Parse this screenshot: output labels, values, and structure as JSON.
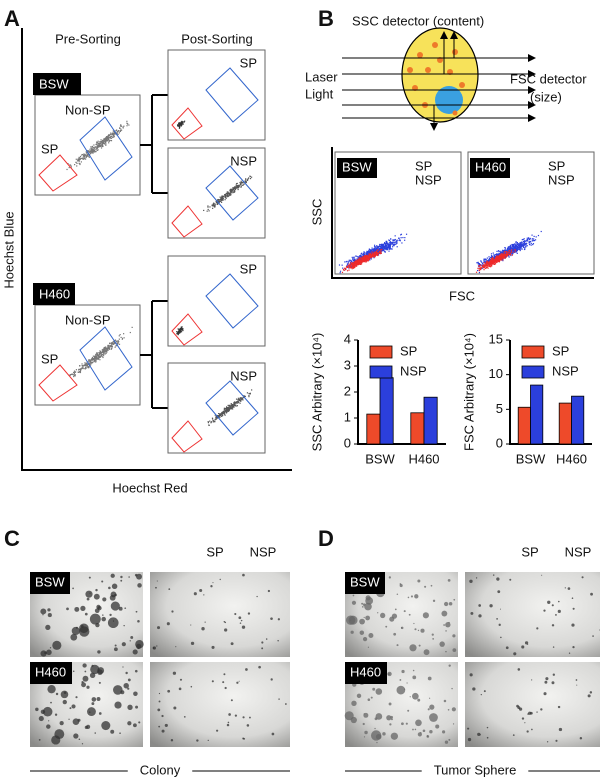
{
  "panel_labels": [
    "A",
    "B",
    "C",
    "D"
  ],
  "panel_a": {
    "pre_title": "Pre-Sorting",
    "post_title": "Post-Sorting",
    "y_label": "Hoechst Blue",
    "x_label": "Hoechst Red",
    "samples": [
      {
        "name": "BSW",
        "gate_sp": "SP",
        "gate_nonsp": "Non-SP",
        "post": [
          "SP",
          "NSP"
        ]
      },
      {
        "name": "H460",
        "gate_sp": "SP",
        "gate_nonsp": "Non-SP",
        "post": [
          "SP",
          "NSP"
        ]
      }
    ]
  },
  "panel_b": {
    "ssc_detector": "SSC detector (content)",
    "laser": [
      "Laser",
      "Light"
    ],
    "fsc_detector": [
      "FSC detector",
      "(size)"
    ],
    "scatter": [
      {
        "name": "BSW",
        "legend": [
          "SP",
          "NSP"
        ]
      },
      {
        "name": "H460",
        "legend": [
          "SP",
          "NSP"
        ]
      }
    ],
    "y_label": "SSC",
    "x_label": "FSC"
  },
  "panel_c": {
    "columns": [
      "SP",
      "NSP"
    ],
    "rows": [
      "BSW",
      "H460"
    ],
    "caption": "Colony"
  },
  "panel_d": {
    "columns": [
      "SP",
      "NSP"
    ],
    "rows": [
      "BSW",
      "H460"
    ],
    "caption": "Tumor Sphere"
  },
  "chart_data": [
    {
      "type": "bar",
      "y_label": "SSC Arbitrary (×10⁴)",
      "categories": [
        "BSW",
        "H460"
      ],
      "series": [
        {
          "name": "SP",
          "color": "#ee4a2a",
          "values": [
            1.15,
            1.2
          ]
        },
        {
          "name": "NSP",
          "color": "#2b3fdc",
          "values": [
            2.55,
            1.8
          ]
        }
      ],
      "ylim": [
        0,
        4
      ],
      "yticks": [
        0,
        1,
        2,
        3,
        4
      ],
      "legend": "upper left"
    },
    {
      "type": "bar",
      "y_label": "FSC Arbitrary (×10⁴)",
      "categories": [
        "BSW",
        "H460"
      ],
      "series": [
        {
          "name": "SP",
          "color": "#ee4a2a",
          "values": [
            5.3,
            5.9
          ]
        },
        {
          "name": "NSP",
          "color": "#2b3fdc",
          "values": [
            8.5,
            6.9
          ]
        }
      ],
      "ylim": [
        0,
        15
      ],
      "yticks": [
        0,
        5,
        10,
        15
      ],
      "legend": "upper left"
    }
  ]
}
